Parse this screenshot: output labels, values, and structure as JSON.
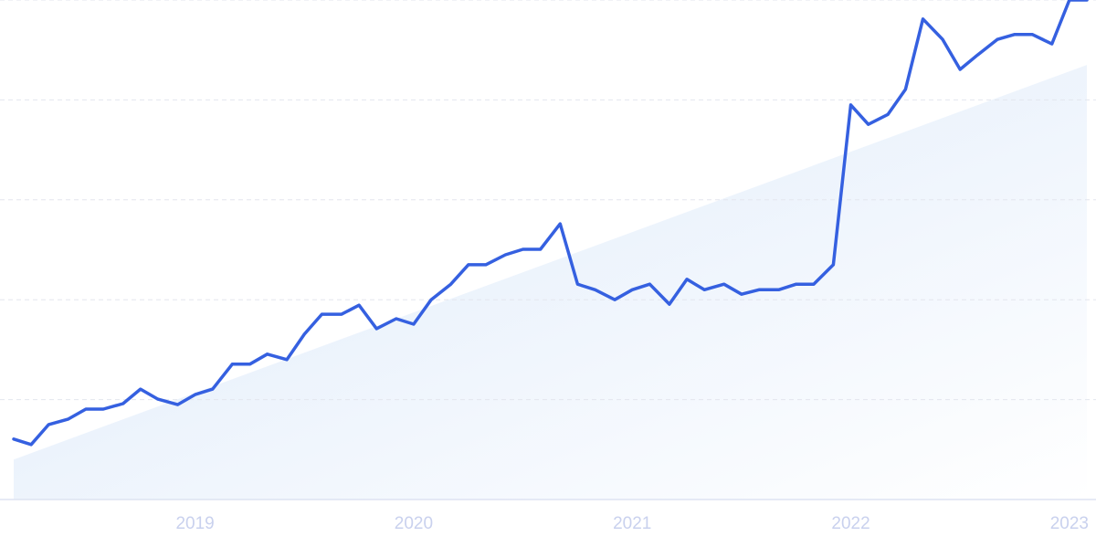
{
  "chart_data": {
    "type": "line",
    "x": [
      2018.17,
      2018.25,
      2018.33,
      2018.42,
      2018.5,
      2018.58,
      2018.67,
      2018.75,
      2018.83,
      2018.92,
      2019.0,
      2019.08,
      2019.17,
      2019.25,
      2019.33,
      2019.42,
      2019.5,
      2019.58,
      2019.67,
      2019.75,
      2019.83,
      2019.92,
      2020.0,
      2020.08,
      2020.17,
      2020.25,
      2020.33,
      2020.42,
      2020.5,
      2020.58,
      2020.67,
      2020.75,
      2020.83,
      2020.92,
      2021.0,
      2021.08,
      2021.17,
      2021.25,
      2021.33,
      2021.42,
      2021.5,
      2021.58,
      2021.67,
      2021.75,
      2021.83,
      2021.92,
      2022.0,
      2022.08,
      2022.17,
      2022.25,
      2022.33,
      2022.42,
      2022.5,
      2022.58,
      2022.67,
      2022.75,
      2022.83,
      2022.92,
      2023.0,
      2023.08
    ],
    "series": [
      {
        "color": "#3560e0",
        "values": [
          12.1,
          11.0,
          15.0,
          16.1,
          18.1,
          18.1,
          19.2,
          22.1,
          20.1,
          19.0,
          21.0,
          22.1,
          27.1,
          27.1,
          29.1,
          28.0,
          33.1,
          37.1,
          37.1,
          38.9,
          34.2,
          36.2,
          35.1,
          40.0,
          43.1,
          47.0,
          47.0,
          49.0,
          50.1,
          50.1,
          55.2,
          43.1,
          42.0,
          40.0,
          42.0,
          43.1,
          39.1,
          44.1,
          42.0,
          43.1,
          41.1,
          42.0,
          42.0,
          43.1,
          43.1,
          47.0,
          79.0,
          75.1,
          77.1,
          82.1,
          96.2,
          92.1,
          86.1,
          89.0,
          92.1,
          93.1,
          93.1,
          91.2,
          100,
          100
        ]
      }
    ],
    "trend": {
      "color": "#dce9fa",
      "values": [
        8,
        87
      ]
    },
    "xlim": [
      2018.17,
      2023.08
    ],
    "xticks": [
      2019,
      2020,
      2021,
      2022,
      2023
    ],
    "ylim": [
      0,
      100
    ],
    "grid_lines": [
      20,
      40,
      60,
      80,
      100
    ]
  }
}
